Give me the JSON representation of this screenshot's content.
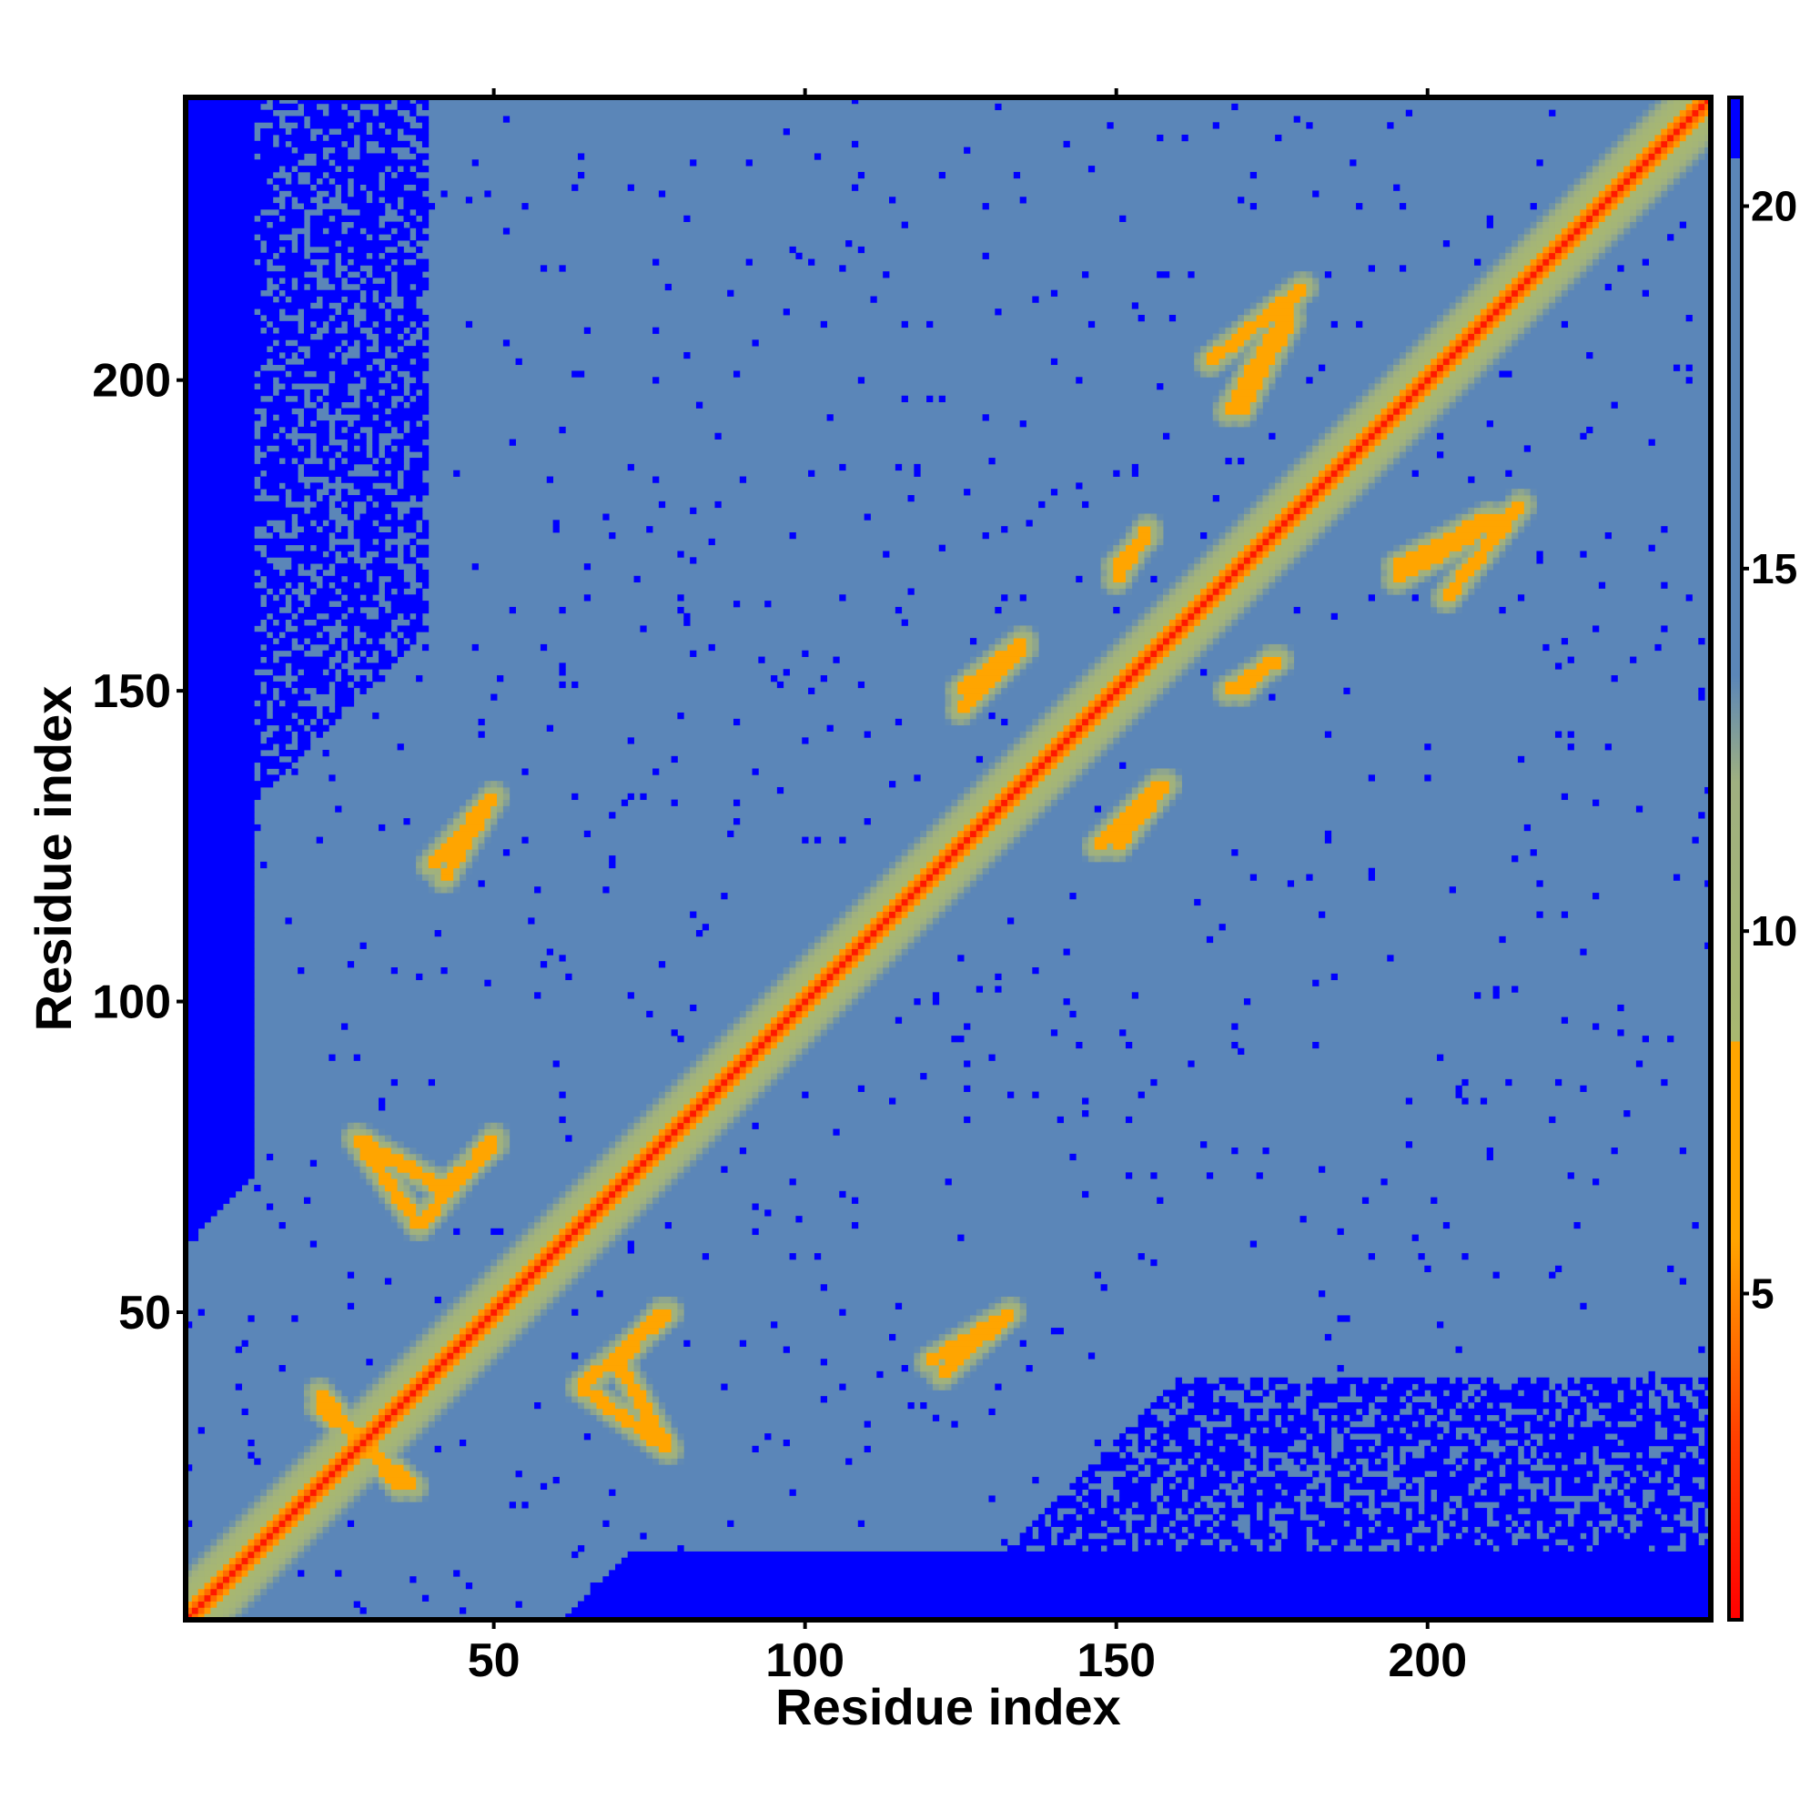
{
  "chart_data": {
    "type": "heatmap",
    "description_matrix": "Symmetric residue-residue distance map (contact map) with a low-distance diagonal and off-diagonal contact stripes",
    "n_residues": 245,
    "xlabel": "Residue index",
    "ylabel": "Residue index",
    "xlim": [
      1,
      245
    ],
    "ylim": [
      1,
      245
    ],
    "x_ticks": [
      50,
      100,
      150,
      200
    ],
    "y_ticks": [
      50,
      100,
      150,
      200
    ],
    "colorbar": {
      "ticks": [
        5,
        10,
        15,
        20
      ],
      "range": [
        0.5,
        21.5
      ],
      "colors": [
        {
          "stop": 0.0,
          "color": "#ff0000"
        },
        {
          "stop": 0.12,
          "color": "#ff4000"
        },
        {
          "stop": 0.25,
          "color": "#ffa500"
        },
        {
          "stop": 0.38,
          "color": "#ffa500"
        },
        {
          "stop": 0.38,
          "color": "#a8b870"
        },
        {
          "stop": 0.55,
          "color": "#9fb080"
        },
        {
          "stop": 0.62,
          "color": "#5b86b8"
        },
        {
          "stop": 0.96,
          "color": "#5b86b8"
        },
        {
          "stop": 0.96,
          "color": "#0000ff"
        },
        {
          "stop": 1.0,
          "color": "#0000ff"
        }
      ]
    },
    "features": {
      "diagonal_value": 1.5,
      "background_value": 17,
      "far_value": 21,
      "contact_stripes": [
        {
          "x": [
            22,
            35
          ],
          "y": [
            37,
            22
          ],
          "value": 6
        },
        {
          "x": [
            28,
            42
          ],
          "y": [
            78,
            70
          ],
          "value": 6
        },
        {
          "x": [
            42,
            50
          ],
          "y": [
            70,
            77
          ],
          "value": 6
        },
        {
          "x": [
            40,
            50
          ],
          "y": [
            122,
            133
          ],
          "value": 6
        },
        {
          "x": [
            64,
            78
          ],
          "y": [
            38,
            28
          ],
          "value": 6
        },
        {
          "x": [
            64,
            78
          ],
          "y": [
            38,
            50
          ],
          "value": 6
        },
        {
          "x": [
            120,
            133
          ],
          "y": [
            42,
            50
          ],
          "value": 6
        },
        {
          "x": [
            125,
            135
          ],
          "y": [
            150,
            158
          ],
          "value": 6
        },
        {
          "x": [
            147,
            157
          ],
          "y": [
            125,
            135
          ],
          "value": 6
        },
        {
          "x": [
            150,
            155
          ],
          "y": [
            170,
            175
          ],
          "value": 6
        },
        {
          "x": [
            168,
            178
          ],
          "y": [
            195,
            212
          ],
          "value": 6
        },
        {
          "x": [
            168,
            176
          ],
          "y": [
            150,
            155
          ],
          "value": 6
        },
        {
          "x": [
            195,
            210
          ],
          "y": [
            170,
            178
          ],
          "value": 6
        },
        {
          "x": [
            203,
            215
          ],
          "y": [
            165,
            180
          ],
          "value": 6
        }
      ],
      "far_regions_bottom_left": true
    }
  }
}
